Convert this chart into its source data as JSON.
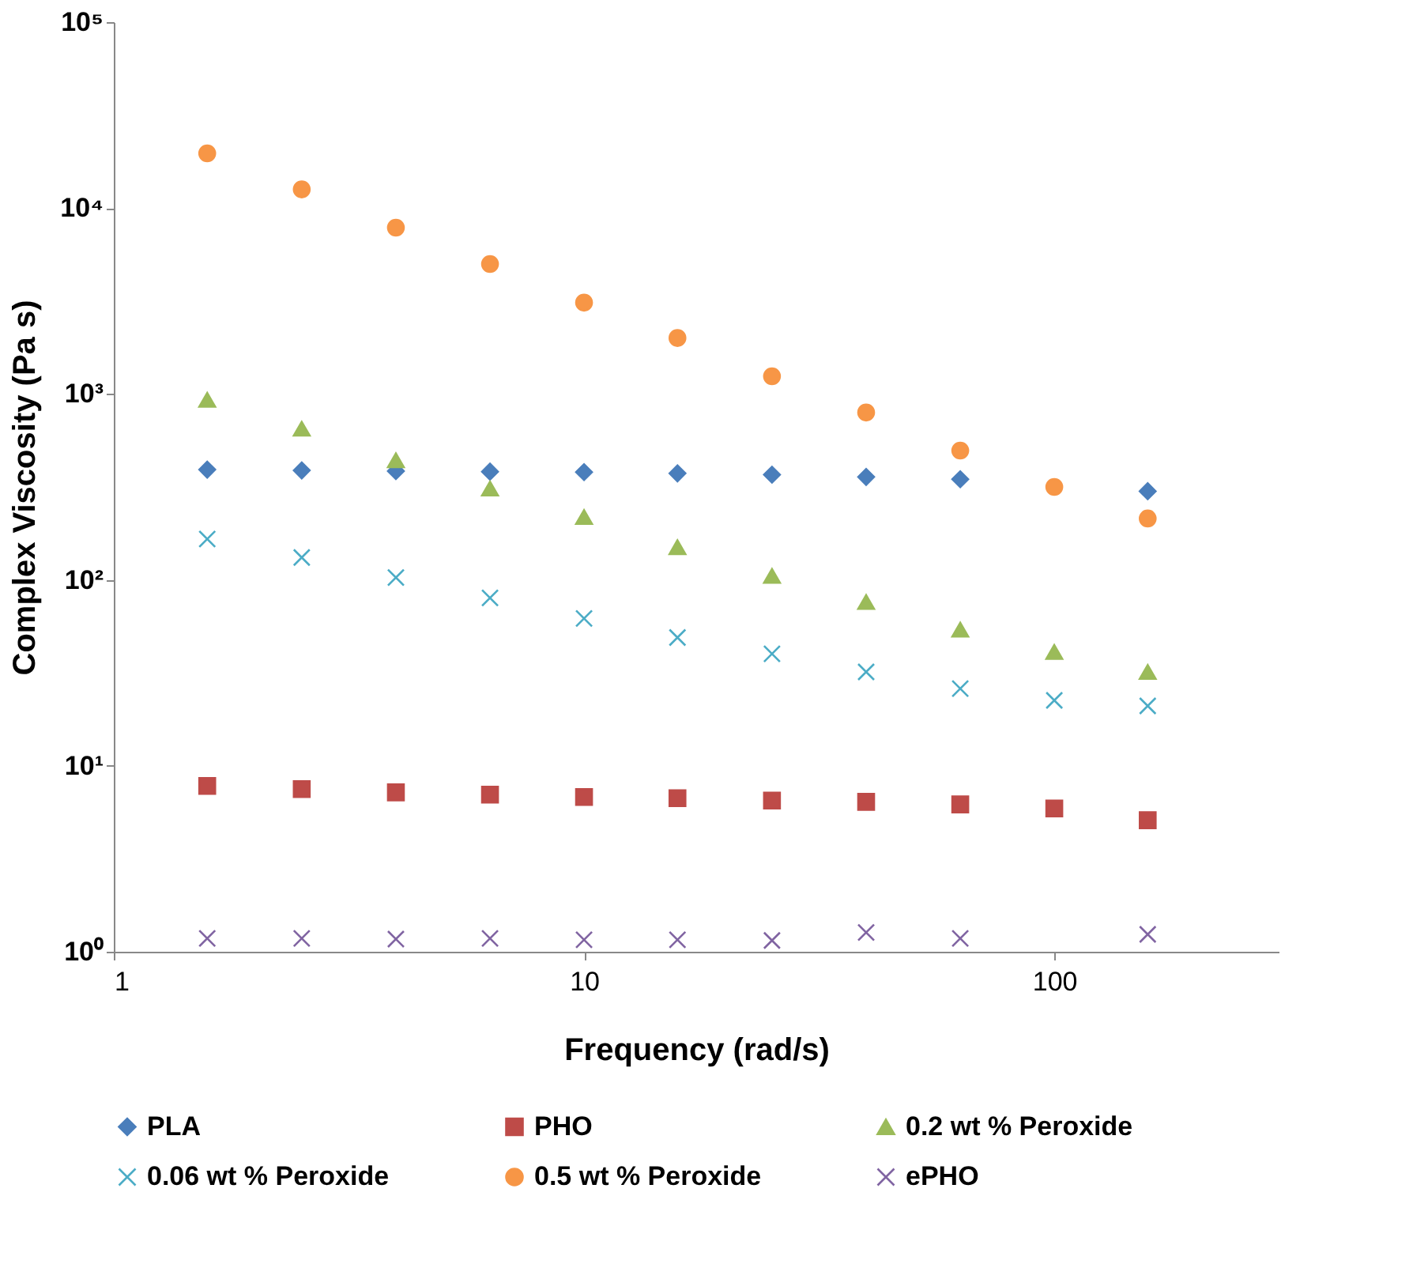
{
  "chart_data": {
    "type": "scatter",
    "xlabel": "Frequency (rad/s)",
    "ylabel": "Complex Viscosity (Pa s)",
    "x": [
      1.58,
      2.51,
      3.98,
      6.31,
      10,
      15.8,
      25.1,
      39.8,
      63.1,
      100,
      158
    ],
    "log": "xy",
    "xlim": [
      1,
      300
    ],
    "xticks": [
      1,
      10,
      100
    ],
    "ylim": [
      1,
      100000
    ],
    "yticks": [
      {
        "value": 1,
        "label": "10⁰"
      },
      {
        "value": 10,
        "label": "10¹"
      },
      {
        "value": 100,
        "label": "10²"
      },
      {
        "value": 1000,
        "label": "10³"
      },
      {
        "value": 10000,
        "label": "10⁴"
      },
      {
        "value": 100000,
        "label": "10⁵"
      }
    ],
    "grid": false,
    "legend": "bottom",
    "series": [
      {
        "name": "PLA",
        "color": "#4a7ebb",
        "marker": "diamond",
        "values": [
          392,
          388,
          385,
          382,
          380,
          374,
          368,
          358,
          348,
          null,
          300
        ]
      },
      {
        "name": "PHO",
        "color": "#be4b48",
        "marker": "square",
        "values": [
          7.8,
          7.5,
          7.2,
          7.0,
          6.8,
          6.7,
          6.5,
          6.4,
          6.2,
          5.9,
          5.1
        ]
      },
      {
        "name": "0.2 wt % Peroxide",
        "color": "#9bbb59",
        "marker": "triangle",
        "values": [
          930,
          650,
          440,
          310,
          218,
          150,
          105,
          76,
          54,
          41,
          32
        ]
      },
      {
        "name": "0.06 wt % Peroxide",
        "color": "#4bacc6",
        "marker": "cross",
        "values": [
          166,
          132,
          103,
          80,
          62,
          49,
          40,
          32,
          26,
          22.5,
          21
        ]
      },
      {
        "name": "0.5 wt % Peroxide",
        "color": "#f79646",
        "marker": "circle",
        "values": [
          19700,
          12600,
          7850,
          5000,
          3100,
          2000,
          1245,
          795,
          496,
          316,
          214
        ]
      },
      {
        "name": "ePHO",
        "color": "#8064a2",
        "marker": "cross",
        "values": [
          1.18,
          1.18,
          1.17,
          1.18,
          1.16,
          1.16,
          1.15,
          1.27,
          1.18,
          null,
          1.24
        ]
      }
    ]
  }
}
